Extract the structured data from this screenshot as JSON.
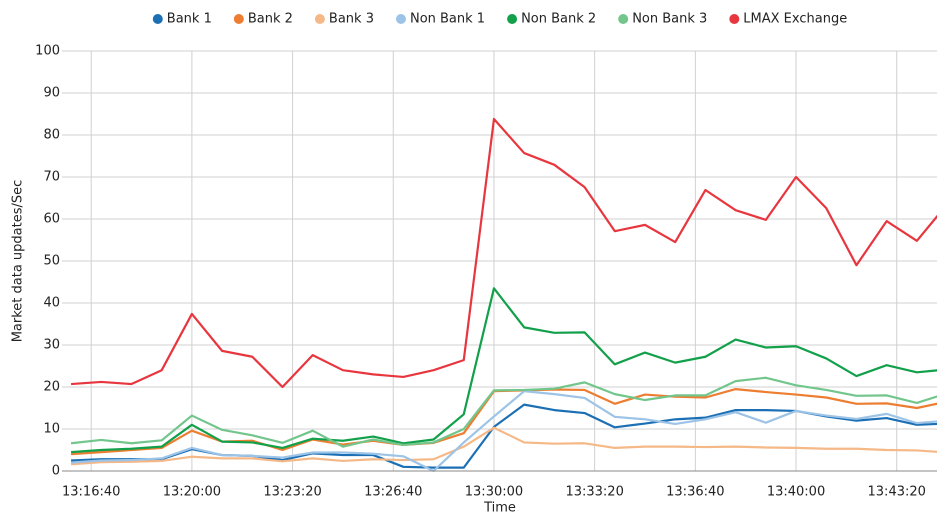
{
  "chart_data": {
    "type": "line",
    "x_label": "Time",
    "y_label": "Market data updates/Sec",
    "x": [
      "13:16:00",
      "13:17:00",
      "13:18:00",
      "13:19:00",
      "13:20:00",
      "13:21:00",
      "13:22:00",
      "13:23:00",
      "13:24:00",
      "13:25:00",
      "13:26:00",
      "13:27:00",
      "13:28:00",
      "13:29:00",
      "13:30:00",
      "13:31:00",
      "13:32:00",
      "13:33:00",
      "13:34:00",
      "13:35:00",
      "13:36:00",
      "13:37:00",
      "13:38:00",
      "13:39:00",
      "13:40:00",
      "13:41:00",
      "13:42:00",
      "13:43:00",
      "13:44:00",
      "13:45:00"
    ],
    "xlim": [
      "13:15:42",
      "13:44:40"
    ],
    "xticks": [
      "13:16:40",
      "13:20:00",
      "13:23:20",
      "13:26:40",
      "13:30:00",
      "13:33:20",
      "13:36:40",
      "13:40:00",
      "13:43:20"
    ],
    "ylim": [
      0,
      100
    ],
    "yticks": [
      0,
      10,
      20,
      30,
      40,
      50,
      60,
      70,
      80,
      90,
      100
    ],
    "grid": true,
    "legend": "top",
    "series": [
      {
        "name": "Bank 1",
        "color": "#1b6fb5",
        "values": [
          2.5,
          2.8,
          2.8,
          2.8,
          5.2,
          3.8,
          3.6,
          2.6,
          4.2,
          3.8,
          3.8,
          1,
          0.8,
          0.8,
          10.5,
          15.8,
          14.5,
          13.8,
          10.4,
          11.3,
          12.3,
          12.7,
          14.5,
          14.5,
          14.3,
          13,
          12,
          12.6,
          11,
          11.3
        ]
      },
      {
        "name": "Bank 2",
        "color": "#ed7d31",
        "values": [
          4,
          4.5,
          5,
          5.5,
          9.6,
          7,
          7.2,
          5,
          7.5,
          6.3,
          7.2,
          6.2,
          6.7,
          9,
          19,
          19.2,
          19.4,
          19.3,
          16,
          18.2,
          17.7,
          17.5,
          19.5,
          18.8,
          18.2,
          17.5,
          16,
          16.1,
          15,
          16.5
        ]
      },
      {
        "name": "Bank 3",
        "color": "#f5b887",
        "values": [
          1.6,
          2.1,
          2.2,
          2.4,
          3.4,
          3,
          3,
          2.3,
          3,
          2.4,
          2.8,
          2.6,
          2.8,
          5.8,
          10.3,
          6.8,
          6.5,
          6.6,
          5.5,
          5.8,
          5.8,
          5.7,
          5.8,
          5.6,
          5.5,
          5.3,
          5.3,
          5,
          4.9,
          4.4
        ]
      },
      {
        "name": "Non Bank 1",
        "color": "#9dc3e6",
        "values": [
          2,
          2.5,
          2.6,
          3,
          5.5,
          3.8,
          3.6,
          3.2,
          4.4,
          4.4,
          4.1,
          3.5,
          0,
          6.8,
          13,
          19,
          18.3,
          17.4,
          12.9,
          12.3,
          11.2,
          12.3,
          14,
          11.5,
          14.3,
          13.2,
          12.4,
          13.6,
          11.4,
          12
        ]
      },
      {
        "name": "Non Bank 2",
        "color": "#12a04a",
        "values": [
          4.5,
          5,
          5.3,
          5.8,
          11,
          7,
          6.8,
          5.5,
          7.7,
          7.2,
          8.2,
          6.6,
          7.5,
          13.5,
          43.5,
          34.2,
          32.9,
          33,
          25.4,
          28.2,
          25.8,
          27.2,
          31.3,
          29.4,
          29.7,
          26.8,
          22.6,
          25.2,
          23.5,
          24.2
        ]
      },
      {
        "name": "Non Bank 3",
        "color": "#72c68c",
        "values": [
          6.6,
          7.4,
          6.6,
          7.3,
          13.2,
          9.8,
          8.5,
          6.7,
          9.6,
          5.8,
          7.5,
          6.2,
          6.8,
          10,
          19.2,
          19.3,
          19.6,
          21.1,
          18.3,
          16.9,
          18,
          18,
          21.4,
          22.2,
          20.4,
          19.3,
          17.9,
          18,
          16.2,
          18.5
        ]
      },
      {
        "name": "LMAX Exchange",
        "color": "#e8363f",
        "values": [
          20.7,
          21.2,
          20.7,
          24,
          37.4,
          28.6,
          27.2,
          20,
          27.6,
          24,
          23,
          22.4,
          24,
          26.4,
          83.8,
          75.7,
          72.9,
          67.6,
          57.1,
          58.6,
          54.5,
          66.9,
          62.1,
          59.8,
          70,
          62.6,
          49,
          59.5,
          54.8,
          63.5
        ]
      }
    ]
  }
}
